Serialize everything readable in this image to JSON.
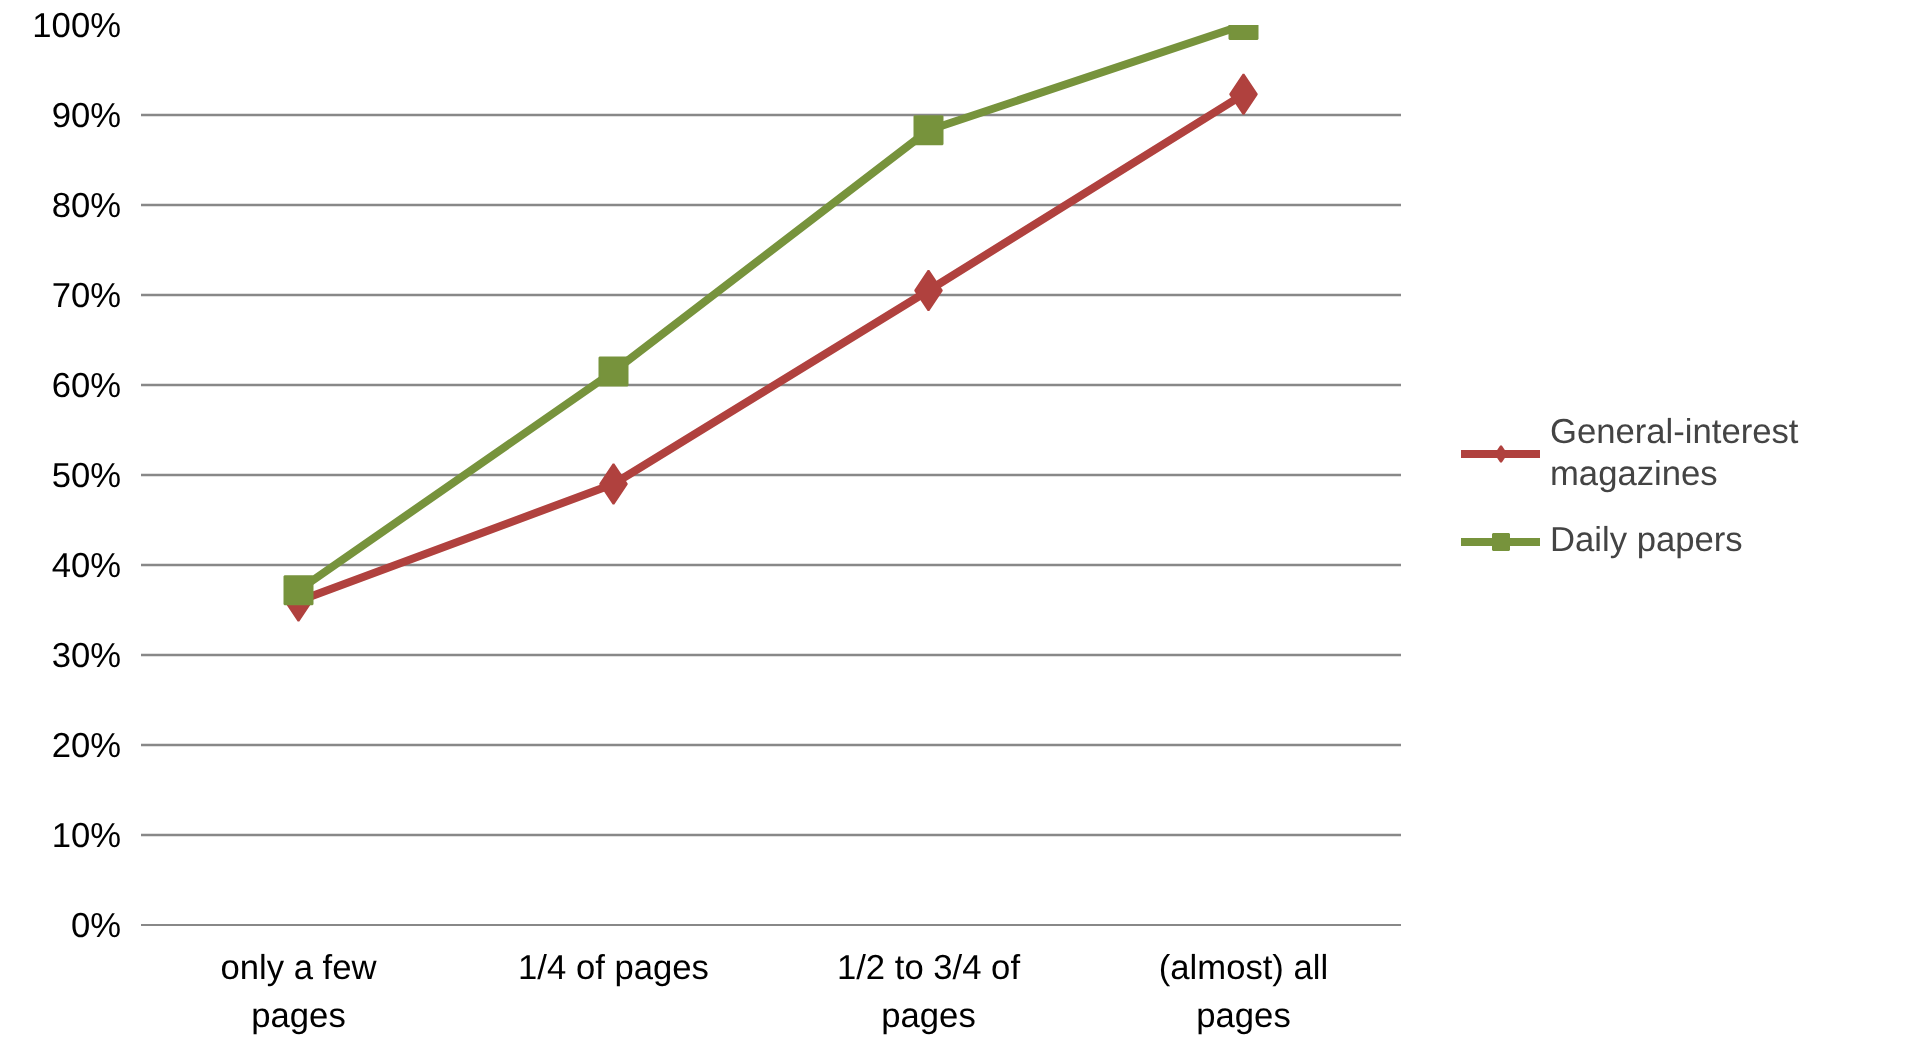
{
  "chart_data": {
    "type": "line",
    "categories": [
      "only a few pages",
      "1/4 of pages",
      "1/2 to 3/4 of pages",
      "(almost) all pages"
    ],
    "series": [
      {
        "name": "General-interest magazines",
        "color": "#b0413e",
        "marker": "diamond",
        "values": [
          36,
          49,
          70.5,
          92.3
        ]
      },
      {
        "name": "Daily papers",
        "color": "#77933c",
        "marker": "square",
        "values": [
          37.2,
          61.5,
          88.3,
          100
        ]
      }
    ],
    "ylim": [
      0,
      100
    ],
    "yticks": [
      {
        "value": 0,
        "label": "0%"
      },
      {
        "value": 10,
        "label": "10%"
      },
      {
        "value": 20,
        "label": "20%"
      },
      {
        "value": 30,
        "label": "30%"
      },
      {
        "value": 40,
        "label": "40%"
      },
      {
        "value": 50,
        "label": "50%"
      },
      {
        "value": 60,
        "label": "60%"
      },
      {
        "value": 70,
        "label": "70%"
      },
      {
        "value": 80,
        "label": "80%"
      },
      {
        "value": 90,
        "label": "90%"
      },
      {
        "value": 100,
        "label": "100%"
      }
    ],
    "grid": "y",
    "legend": "right",
    "line_style": "solid"
  }
}
